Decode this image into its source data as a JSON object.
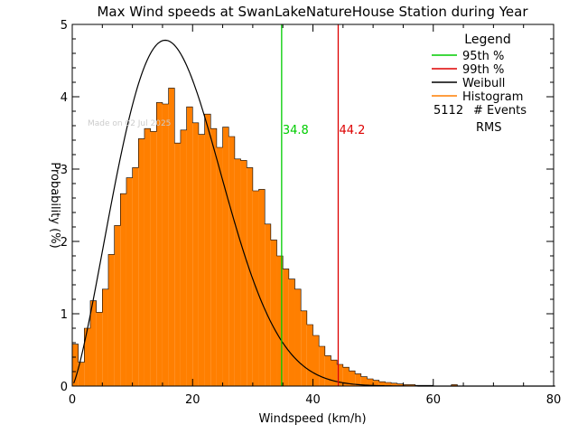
{
  "chart_data": {
    "type": "bar",
    "title": "Max Wind speeds at SwanLakeNatureHouse Station during Year",
    "xlabel": "Windspeed (km/h)",
    "ylabel": "Probability (%)",
    "xlim": [
      0,
      80
    ],
    "ylim": [
      0,
      5
    ],
    "x_ticks": [
      "0",
      "20",
      "40",
      "60",
      "80"
    ],
    "y_ticks": [
      "0",
      "1",
      "2",
      "3",
      "4",
      "5"
    ],
    "watermark": "Made on 02 Jul 2025",
    "bin_width": 1,
    "histogram": {
      "name": "Histogram",
      "color": "#ff7f00",
      "values": [
        0.58,
        0.33,
        0.8,
        1.18,
        1.02,
        1.34,
        1.82,
        2.22,
        2.66,
        2.88,
        3.02,
        3.42,
        3.56,
        3.52,
        3.92,
        3.9,
        4.12,
        3.36,
        3.54,
        3.86,
        3.64,
        3.48,
        3.76,
        3.56,
        3.3,
        3.58,
        3.45,
        3.14,
        3.12,
        3.02,
        2.7,
        2.72,
        2.24,
        2.02,
        1.8,
        1.62,
        1.48,
        1.34,
        1.04,
        0.85,
        0.7,
        0.55,
        0.42,
        0.36,
        0.3,
        0.26,
        0.21,
        0.17,
        0.13,
        0.1,
        0.08,
        0.06,
        0.05,
        0.04,
        0.03,
        0.02,
        0.02,
        0.01,
        0.01,
        0.01,
        0.0,
        0.0,
        0.0,
        0.02,
        0.0,
        0.0,
        0.0,
        0.0,
        0.0,
        0.0,
        0.0,
        0.0,
        0.0,
        0.0,
        0.0,
        0.0,
        0.0,
        0.0,
        0.0,
        0.0
      ]
    },
    "weibull": {
      "name": "Weibull",
      "color": "#000000",
      "shape_k": 2.3,
      "scale_lambda": 19.8
    },
    "percentiles": [
      {
        "name": "95th %",
        "value": 34.8,
        "label": "34.8",
        "color": "#00cc00"
      },
      {
        "name": "99th %",
        "value": 44.2,
        "label": "44.2",
        "color": "#dd0000"
      }
    ],
    "legend": {
      "title": "Legend",
      "placement": "top-right",
      "items": [
        {
          "label": "95th %",
          "color": "#00cc00"
        },
        {
          "label": "99th %",
          "color": "#dd0000"
        },
        {
          "label": "Weibull",
          "color": "#000000"
        },
        {
          "label": "Histogram",
          "color": "#ff7f00"
        }
      ],
      "events_count": "5112",
      "events_label": "# Events",
      "rms_label": "RMS"
    }
  }
}
